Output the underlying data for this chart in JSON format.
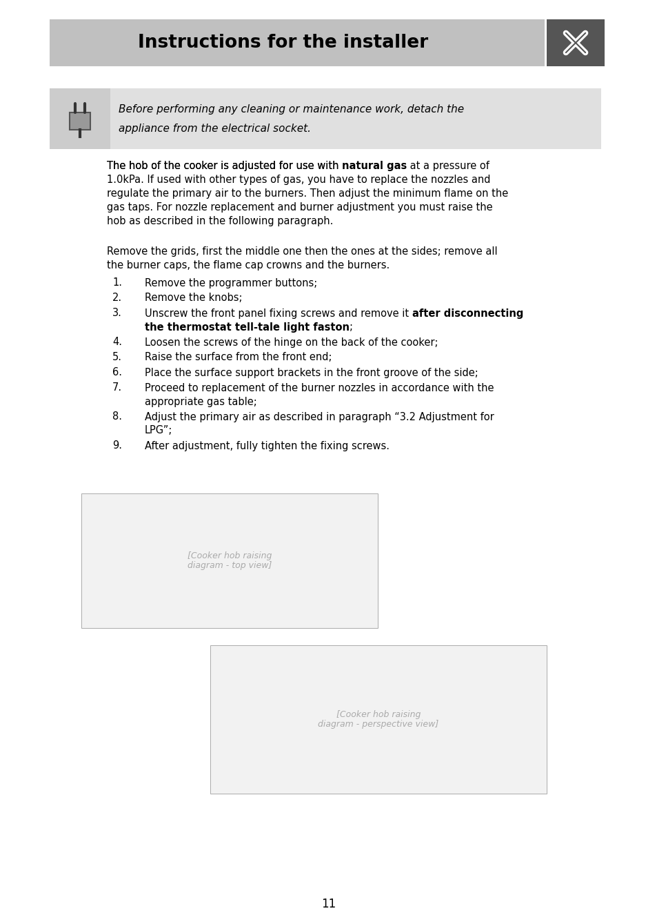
{
  "page_bg": "#ffffff",
  "header_bg": "#c0c0c0",
  "header_text": "Instructions for the installer",
  "icon_bg": "#555555",
  "warning_box_bg": "#e0e0e0",
  "warning_icon_bg": "#cccccc",
  "warning_line1": "Before performing any cleaning or maintenance work, detach the",
  "warning_line2": "appliance from the electrical socket.",
  "p1_line1_pre": "The hob of the cooker is adjusted for use with ",
  "p1_line1_bold": "natural gas",
  "p1_line1_post": " at a pressure of",
  "p1_lines": [
    "1.0kPa. If used with other types of gas, you have to replace the nozzles and",
    "regulate the primary air to the burners. Then adjust the minimum flame on the",
    "gas taps. For nozzle replacement and burner adjustment you must raise the",
    "hob as described in the following paragraph."
  ],
  "p2_lines": [
    "Remove the grids, first the middle one then the ones at the sides; remove all",
    "the burner caps, the flame cap crowns and the burners."
  ],
  "list_items": [
    {
      "num": "1.",
      "lines": [
        {
          "text": "Remove the programmer buttons;",
          "bold": false
        }
      ]
    },
    {
      "num": "2.",
      "lines": [
        {
          "text": "Remove the knobs;",
          "bold": false
        }
      ]
    },
    {
      "num": "3.",
      "lines": [
        {
          "text": "Unscrew the front panel fixing screws and remove it ",
          "bold": false,
          "append_bold": "after disconnecting"
        },
        {
          "text": "the thermostat tell-tale light faston",
          "bold": true,
          "append": ";"
        }
      ]
    },
    {
      "num": "4.",
      "lines": [
        {
          "text": "Loosen the screws of the hinge on the back of the cooker;",
          "bold": false
        }
      ]
    },
    {
      "num": "5.",
      "lines": [
        {
          "text": "Raise the surface from the front end;",
          "bold": false
        }
      ]
    },
    {
      "num": "6.",
      "lines": [
        {
          "text": "Place the surface support brackets in the front groove of the side;",
          "bold": false
        }
      ]
    },
    {
      "num": "7.",
      "lines": [
        {
          "text": "Proceed to replacement of the burner nozzles in accordance with the",
          "bold": false
        },
        {
          "text": "appropriate gas table;",
          "bold": false
        }
      ]
    },
    {
      "num": "8.",
      "lines": [
        {
          "text": "Adjust the primary air as described in paragraph “3.2 Adjustment for",
          "bold": false
        },
        {
          "text": "LPG”;",
          "bold": false
        }
      ]
    },
    {
      "num": "9.",
      "lines": [
        {
          "text": "After adjustment, fully tighten the fixing screws.",
          "bold": false
        }
      ]
    }
  ],
  "page_number": "11",
  "body_font_size": 10.5,
  "list_font_size": 10.5
}
